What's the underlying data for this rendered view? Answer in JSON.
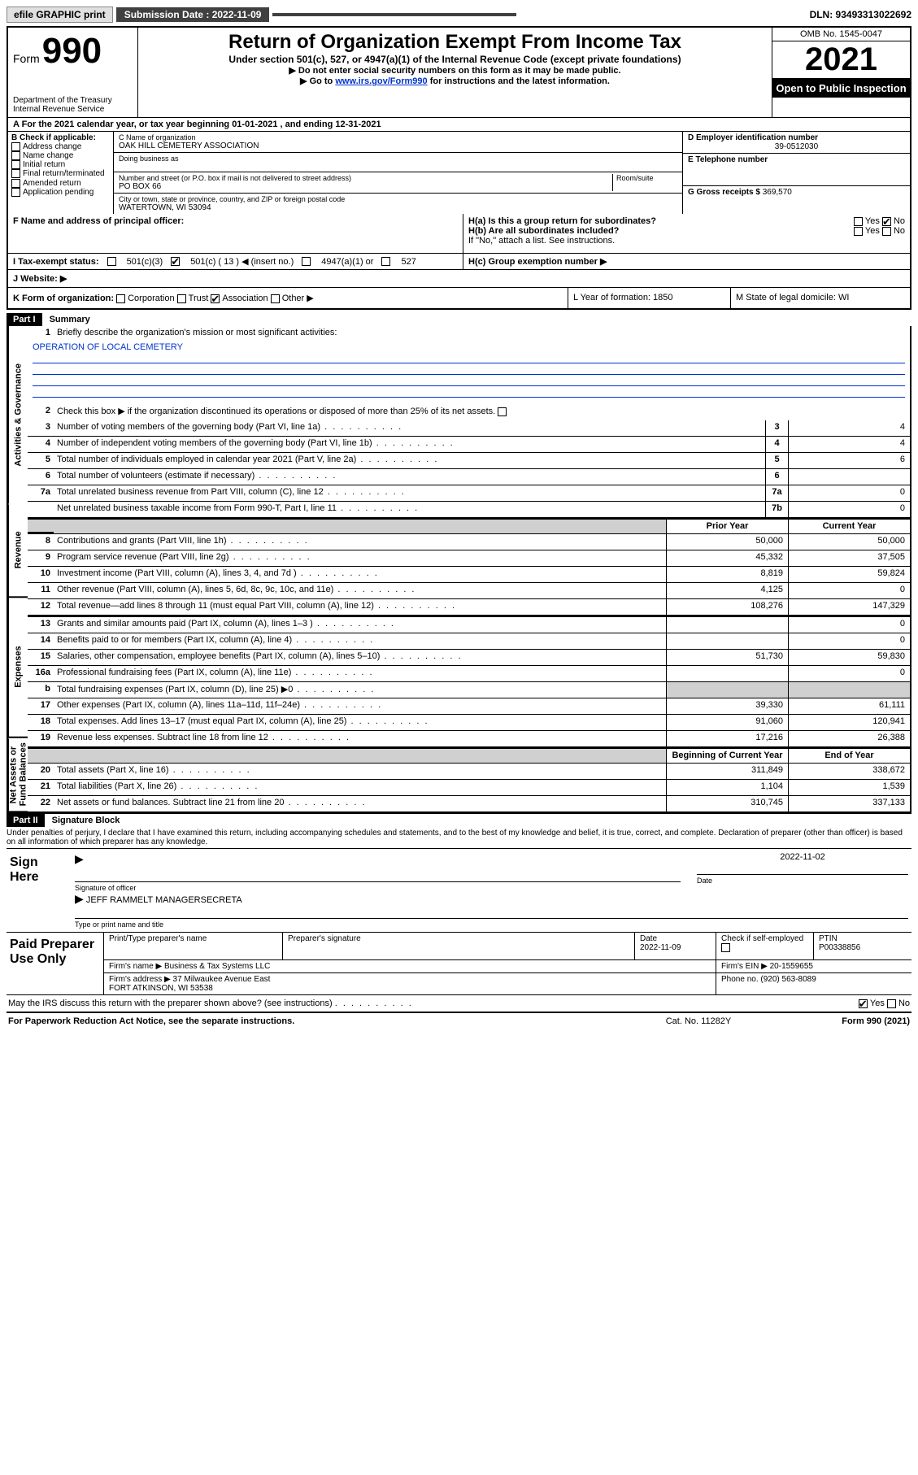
{
  "topbar": {
    "efile": "efile GRAPHIC print",
    "submission_label": "Submission Date : 2022-11-09",
    "dln": "DLN: 93493313022692"
  },
  "header": {
    "form_word": "Form",
    "form_number": "990",
    "dept": "Department of the Treasury",
    "irs": "Internal Revenue Service",
    "title": "Return of Organization Exempt From Income Tax",
    "subtitle": "Under section 501(c), 527, or 4947(a)(1) of the Internal Revenue Code (except private foundations)",
    "instr1": "▶ Do not enter social security numbers on this form as it may be made public.",
    "instr2_pre": "▶ Go to ",
    "instr2_link": "www.irs.gov/Form990",
    "instr2_post": " for instructions and the latest information.",
    "omb": "OMB No. 1545-0047",
    "year": "2021",
    "open": "Open to Public Inspection"
  },
  "row_a": "A For the 2021 calendar year, or tax year beginning 01-01-2021   , and ending 12-31-2021",
  "col_b": {
    "label": "B Check if applicable:",
    "opts": [
      "Address change",
      "Name change",
      "Initial return",
      "Final return/terminated",
      "Amended return",
      "Application pending"
    ]
  },
  "col_c": {
    "name_label": "C Name of organization",
    "name": "OAK HILL CEMETERY ASSOCIATION",
    "dba_label": "Doing business as",
    "addr_label": "Number and street (or P.O. box if mail is not delivered to street address)",
    "room_label": "Room/suite",
    "addr": "PO BOX 66",
    "city_label": "City or town, state or province, country, and ZIP or foreign postal code",
    "city": "WATERTOWN, WI  53094"
  },
  "col_de": {
    "d_label": "D Employer identification number",
    "d_val": "39-0512030",
    "e_label": "E Telephone number",
    "g_label": "G Gross receipts $",
    "g_val": "369,570"
  },
  "row_f": {
    "label": "F  Name and address of principal officer:"
  },
  "row_h": {
    "ha": "H(a)  Is this a group return for subordinates?",
    "hb": "H(b)  Are all subordinates included?",
    "hb_note": "If \"No,\" attach a list. See instructions.",
    "hc": "H(c)  Group exemption number ▶",
    "yes": "Yes",
    "no": "No"
  },
  "row_i": {
    "label": "I   Tax-exempt status:",
    "o1": "501(c)(3)",
    "o2": "501(c) ( 13 ) ◀ (insert no.)",
    "o3": "4947(a)(1) or",
    "o4": "527"
  },
  "row_j": {
    "label": "J   Website: ▶"
  },
  "row_k": {
    "label": "K Form of organization:",
    "o1": "Corporation",
    "o2": "Trust",
    "o3": "Association",
    "o4": "Other ▶",
    "l": "L Year of formation: 1850",
    "m": "M State of legal domicile: WI"
  },
  "part1": {
    "tag": "Part I",
    "title": "Summary",
    "line1": "Briefly describe the organization's mission or most significant activities:",
    "mission": "OPERATION OF LOCAL CEMETERY",
    "line2": "Check this box ▶    if the organization discontinued its operations or disposed of more than 25% of its net assets.",
    "sidelabels": {
      "gov": "Activities & Governance",
      "rev": "Revenue",
      "exp": "Expenses",
      "net": "Net Assets or Fund Balances"
    },
    "col_prior": "Prior Year",
    "col_current": "Current Year",
    "col_begin": "Beginning of Current Year",
    "col_end": "End of Year",
    "gov_lines": [
      {
        "n": "3",
        "d": "Number of voting members of the governing body (Part VI, line 1a)",
        "b": "3",
        "v": "4"
      },
      {
        "n": "4",
        "d": "Number of independent voting members of the governing body (Part VI, line 1b)",
        "b": "4",
        "v": "4"
      },
      {
        "n": "5",
        "d": "Total number of individuals employed in calendar year 2021 (Part V, line 2a)",
        "b": "5",
        "v": "6"
      },
      {
        "n": "6",
        "d": "Total number of volunteers (estimate if necessary)",
        "b": "6",
        "v": ""
      },
      {
        "n": "7a",
        "d": "Total unrelated business revenue from Part VIII, column (C), line 12",
        "b": "7a",
        "v": "0"
      },
      {
        "n": "",
        "d": "Net unrelated business taxable income from Form 990-T, Part I, line 11",
        "b": "7b",
        "v": "0"
      }
    ],
    "rev_lines": [
      {
        "n": "8",
        "d": "Contributions and grants (Part VIII, line 1h)",
        "p": "50,000",
        "c": "50,000"
      },
      {
        "n": "9",
        "d": "Program service revenue (Part VIII, line 2g)",
        "p": "45,332",
        "c": "37,505"
      },
      {
        "n": "10",
        "d": "Investment income (Part VIII, column (A), lines 3, 4, and 7d )",
        "p": "8,819",
        "c": "59,824"
      },
      {
        "n": "11",
        "d": "Other revenue (Part VIII, column (A), lines 5, 6d, 8c, 9c, 10c, and 11e)",
        "p": "4,125",
        "c": "0"
      },
      {
        "n": "12",
        "d": "Total revenue—add lines 8 through 11 (must equal Part VIII, column (A), line 12)",
        "p": "108,276",
        "c": "147,329"
      }
    ],
    "exp_lines": [
      {
        "n": "13",
        "d": "Grants and similar amounts paid (Part IX, column (A), lines 1–3 )",
        "p": "",
        "c": "0"
      },
      {
        "n": "14",
        "d": "Benefits paid to or for members (Part IX, column (A), line 4)",
        "p": "",
        "c": "0"
      },
      {
        "n": "15",
        "d": "Salaries, other compensation, employee benefits (Part IX, column (A), lines 5–10)",
        "p": "51,730",
        "c": "59,830"
      },
      {
        "n": "16a",
        "d": "Professional fundraising fees (Part IX, column (A), line 11e)",
        "p": "",
        "c": "0"
      },
      {
        "n": "b",
        "d": "Total fundraising expenses (Part IX, column (D), line 25) ▶0",
        "p": "GRAY",
        "c": "GRAY"
      },
      {
        "n": "17",
        "d": "Other expenses (Part IX, column (A), lines 11a–11d, 11f–24e)",
        "p": "39,330",
        "c": "61,111"
      },
      {
        "n": "18",
        "d": "Total expenses. Add lines 13–17 (must equal Part IX, column (A), line 25)",
        "p": "91,060",
        "c": "120,941"
      },
      {
        "n": "19",
        "d": "Revenue less expenses. Subtract line 18 from line 12",
        "p": "17,216",
        "c": "26,388"
      }
    ],
    "net_lines": [
      {
        "n": "20",
        "d": "Total assets (Part X, line 16)",
        "p": "311,849",
        "c": "338,672"
      },
      {
        "n": "21",
        "d": "Total liabilities (Part X, line 26)",
        "p": "1,104",
        "c": "1,539"
      },
      {
        "n": "22",
        "d": "Net assets or fund balances. Subtract line 21 from line 20",
        "p": "310,745",
        "c": "337,133"
      }
    ]
  },
  "part2": {
    "tag": "Part II",
    "title": "Signature Block",
    "penalty": "Under penalties of perjury, I declare that I have examined this return, including accompanying schedules and statements, and to the best of my knowledge and belief, it is true, correct, and complete. Declaration of preparer (other than officer) is based on all information of which preparer has any knowledge.",
    "sign_here": "Sign Here",
    "sig_officer": "Signature of officer",
    "sig_date": "Date",
    "sig_date_val": "2022-11-02",
    "officer_name": "JEFF RAMMELT MANAGERSECRETA",
    "type_name": "Type or print name and title",
    "paid": "Paid Preparer Use Only",
    "prep_name_label": "Print/Type preparer's name",
    "prep_sig_label": "Preparer's signature",
    "prep_date_label": "Date",
    "prep_date": "2022-11-09",
    "check_if": "Check      if self-employed",
    "ptin_label": "PTIN",
    "ptin": "P00338856",
    "firm_name_label": "Firm's name    ▶",
    "firm_name": "Business & Tax Systems LLC",
    "firm_ein_label": "Firm's EIN ▶",
    "firm_ein": "20-1559655",
    "firm_addr_label": "Firm's address ▶",
    "firm_addr1": "37 Milwaukee Avenue East",
    "firm_addr2": "FORT ATKINSON, WI  53538",
    "phone_label": "Phone no.",
    "phone": "(920) 563-8089",
    "may_irs": "May the IRS discuss this return with the preparer shown above? (see instructions)",
    "yes": "Yes",
    "no": "No"
  },
  "footer": {
    "pra": "For Paperwork Reduction Act Notice, see the separate instructions.",
    "cat": "Cat. No. 11282Y",
    "form": "Form 990 (2021)"
  }
}
